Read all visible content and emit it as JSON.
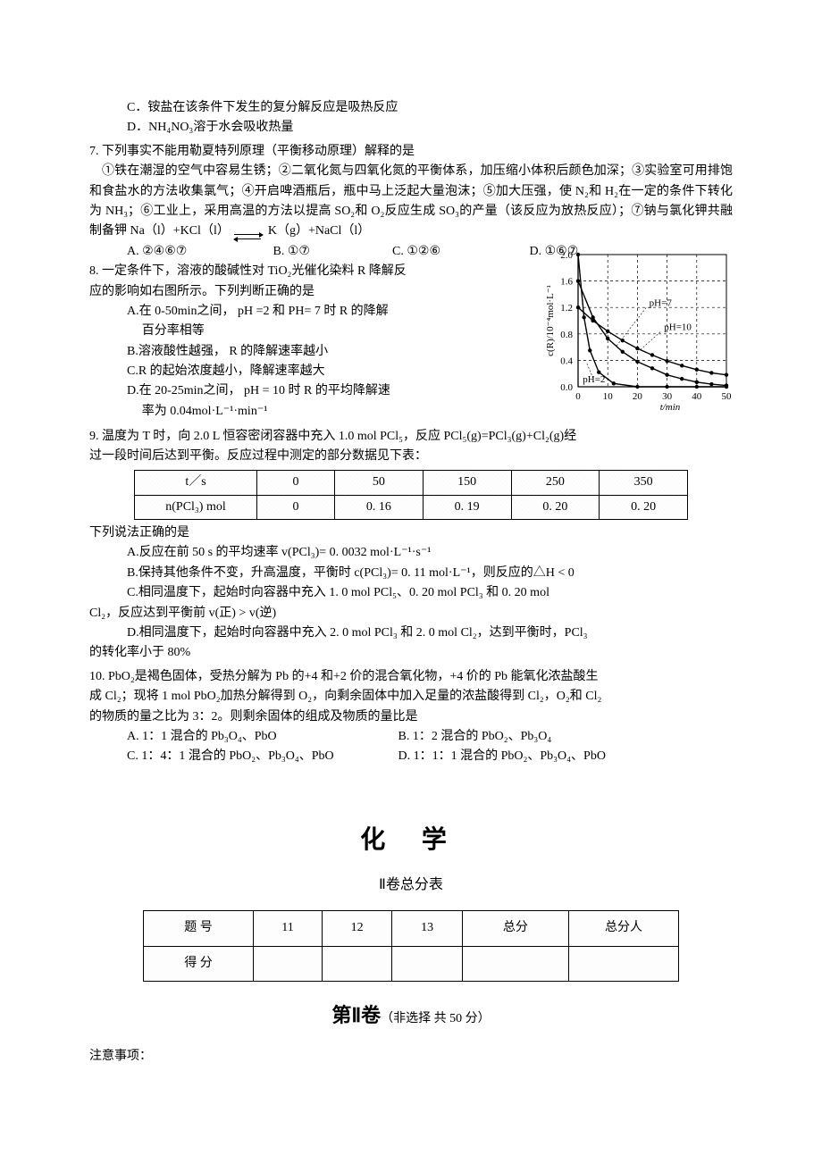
{
  "q6": {
    "C": "C．铵盐在该条件下发生的复分解反应是吸热反应",
    "D": "D．NH₄NO₃溶于水会吸收热量"
  },
  "q7": {
    "stem": "7. 下列事实不能用勒夏特列原理（平衡移动原理）解释的是",
    "body": "①铁在潮湿的空气中容易生锈；②二氧化氮与四氧化氮的平衡体系，加压缩小体积后颜色加深；③实验室可用排饱和食盐水的方法收集氯气；④开启啤酒瓶后，瓶中马上泛起大量泡沫；⑤加大压强，使 N₂和 H₂在一定的条件下转化为 NH₃；⑥工业上，采用高温的方法以提高 SO₂和 O₂反应生成 SO₃的产量（该反应为放热反应）；⑦钠与氯化钾共融制备钾 Na（l）+KCl（l）",
    "eq_right": "K（g）+NaCl（l）",
    "opts": {
      "A": "A. ②④⑥⑦",
      "B": "B. ①⑦",
      "C": "C. ①②⑥",
      "D": "D. ①⑥⑦"
    }
  },
  "q8": {
    "stem1": "8. 一定条件下，溶液的酸碱性对 TiO₂光催化染料 R 降解反",
    "stem2": "应的影响如右图所示。下列判断正确的是",
    "A1": "A.在 0-50min之间， pH =2 和 PH= 7 时 R 的降解",
    "A2": "百分率相等",
    "B": "B.溶液酸性越强， R 的降解速率越小",
    "C": "C.R 的起始浓度越小，降解速率越大",
    "D1": "D.在 20-25min之间， pH = 10 时 R 的平均降解速",
    "D2": "率为 0.04mol·L⁻¹·min⁻¹",
    "chart": {
      "xmin": 0,
      "xmax": 50,
      "xticks": [
        0,
        10,
        20,
        30,
        40,
        50
      ],
      "ymin": 0.0,
      "ymax": 2.0,
      "yticks": [
        0.0,
        0.4,
        0.8,
        1.2,
        1.6,
        2.0
      ],
      "ylabel": "c(R)/10⁻⁴mol·L⁻¹",
      "xlabel": "t/min",
      "grid_dash": "3,3",
      "labels": {
        "ph2": "pH=2",
        "ph7": "pH=7",
        "ph10": "pH=10"
      },
      "series": {
        "ph2": [
          [
            0,
            2.0
          ],
          [
            2,
            1.05
          ],
          [
            4,
            0.55
          ],
          [
            7,
            0.22
          ],
          [
            12,
            0.05
          ],
          [
            20,
            0.0
          ],
          [
            30,
            0.0
          ],
          [
            40,
            0.0
          ],
          [
            50,
            0.0
          ]
        ],
        "ph7": [
          [
            0,
            1.6
          ],
          [
            5,
            1.05
          ],
          [
            10,
            0.73
          ],
          [
            15,
            0.53
          ],
          [
            20,
            0.38
          ],
          [
            25,
            0.28
          ],
          [
            30,
            0.18
          ],
          [
            35,
            0.12
          ],
          [
            40,
            0.07
          ],
          [
            45,
            0.04
          ],
          [
            50,
            0.02
          ]
        ],
        "ph10": [
          [
            0,
            1.2
          ],
          [
            5,
            1.0
          ],
          [
            10,
            0.84
          ],
          [
            15,
            0.7
          ],
          [
            20,
            0.58
          ],
          [
            25,
            0.48
          ],
          [
            30,
            0.39
          ],
          [
            35,
            0.32
          ],
          [
            40,
            0.26
          ],
          [
            45,
            0.21
          ],
          [
            50,
            0.18
          ]
        ]
      }
    }
  },
  "q9": {
    "stem1": "9. 温度为 T 时，向 2.0 L 恒容密闭容器中充入 1.0 mol PCl₅，反应 PCl₅(g)=PCl₃(g)+Cl₂(g)经",
    "stem2": "过一段时间后达到平衡。反应过程中测定的部分数据见下表：",
    "table": {
      "r1": [
        "t／s",
        "0",
        "50",
        "150",
        "250",
        "350"
      ],
      "r2": [
        "n(PCl₃) mol",
        "0",
        "0. 16",
        "0. 19",
        "0. 20",
        "0. 20"
      ]
    },
    "after": "下列说法正确的是",
    "A": "A.反应在前 50 s 的平均速率 v(PCl₃)= 0. 0032 mol·L⁻¹·s⁻¹",
    "B": "B.保持其他条件不变，升高温度，平衡时 c(PCl₃)= 0. 11 mol·L⁻¹，则反应的△H < 0",
    "C1": "C.相同温度下，起始时向容器中充入 1. 0 mol PCl₅、0. 20 mol PCl₃ 和 0. 20 mol",
    "C2": "Cl₂，反应达到平衡前 v(正) > v(逆)",
    "D1": "D.相同温度下，起始时向容器中充入 2. 0 mol PCl₃ 和 2. 0 mol Cl₂，达到平衡时，PCl₃",
    "D2": "的转化率小于 80%"
  },
  "q10": {
    "l1": "10. PbO₂是褐色固体，受热分解为 Pb 的+4 和+2 价的混合氧化物，+4 价的 Pb 能氧化浓盐酸生",
    "l2": "成 Cl₂；现将 1 mol PbO₂加热分解得到 O₂，向剩余固体中加入足量的浓盐酸得到 Cl₂，O₂和 Cl₂",
    "l3": "的物质的量之比为 3：2。则剩余固体的组成及物质的量比是",
    "A": "A. 1：1 混合的 Pb₃O₄、PbO",
    "B": "B. 1：2 混合的 PbO₂、Pb₃O₄",
    "C": "C. 1：4：1 混合的 PbO₂、Pb₃O₄、PbO",
    "D": "D. 1：1：1 混合的 PbO₂、Pb₃O₄、PbO"
  },
  "title_main": "化 学",
  "title_sub": "Ⅱ卷总分表",
  "score_table": {
    "r1": [
      "题  号",
      "11",
      "12",
      "13",
      "总分",
      "总分人"
    ],
    "r2": [
      "得  分",
      "",
      "",
      "",
      "",
      ""
    ]
  },
  "section2_main": "第Ⅱ卷",
  "section2_paren": "（非选择  共 50 分）",
  "note": "注意事项："
}
